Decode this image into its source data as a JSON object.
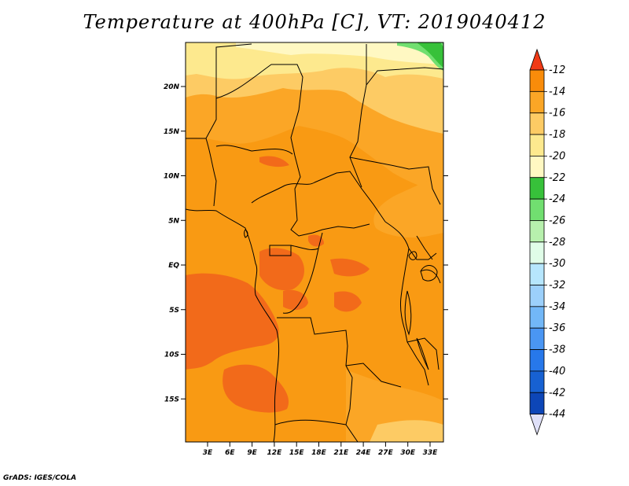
{
  "title": "Temperature at 400hPa [C], VT: 2019040412",
  "credit": "GrADS: IGES/COLA",
  "map": {
    "lat_labels": [
      "20N",
      "15N",
      "10N",
      "5N",
      "EQ",
      "5S",
      "10S",
      "15S"
    ],
    "lon_labels": [
      "3E",
      "6E",
      "9E",
      "12E",
      "15E",
      "18E",
      "21E",
      "24E",
      "27E",
      "30E",
      "33E"
    ]
  },
  "colorbar": {
    "labels": [
      "-12",
      "-14",
      "-16",
      "-18",
      "-20",
      "-22",
      "-24",
      "-26",
      "-28",
      "-30",
      "-32",
      "-34",
      "-36",
      "-38",
      "-40",
      "-42",
      "-44"
    ],
    "colors": [
      "#f05a18",
      "#f98c0a",
      "#fba626",
      "#fdcb64",
      "#fde98e",
      "#fff8c2",
      "#37c13a",
      "#71df70",
      "#b7f0ad",
      "#e0fde8",
      "#b6e6fd",
      "#9cd0fb",
      "#72b7f7",
      "#4a96f3",
      "#2778ea",
      "#1761d2",
      "#0d46b7",
      "#0a1f78"
    ],
    "top_arrow_color": "#f03a16",
    "bottom_arrow_color": "#dfe0f8"
  }
}
